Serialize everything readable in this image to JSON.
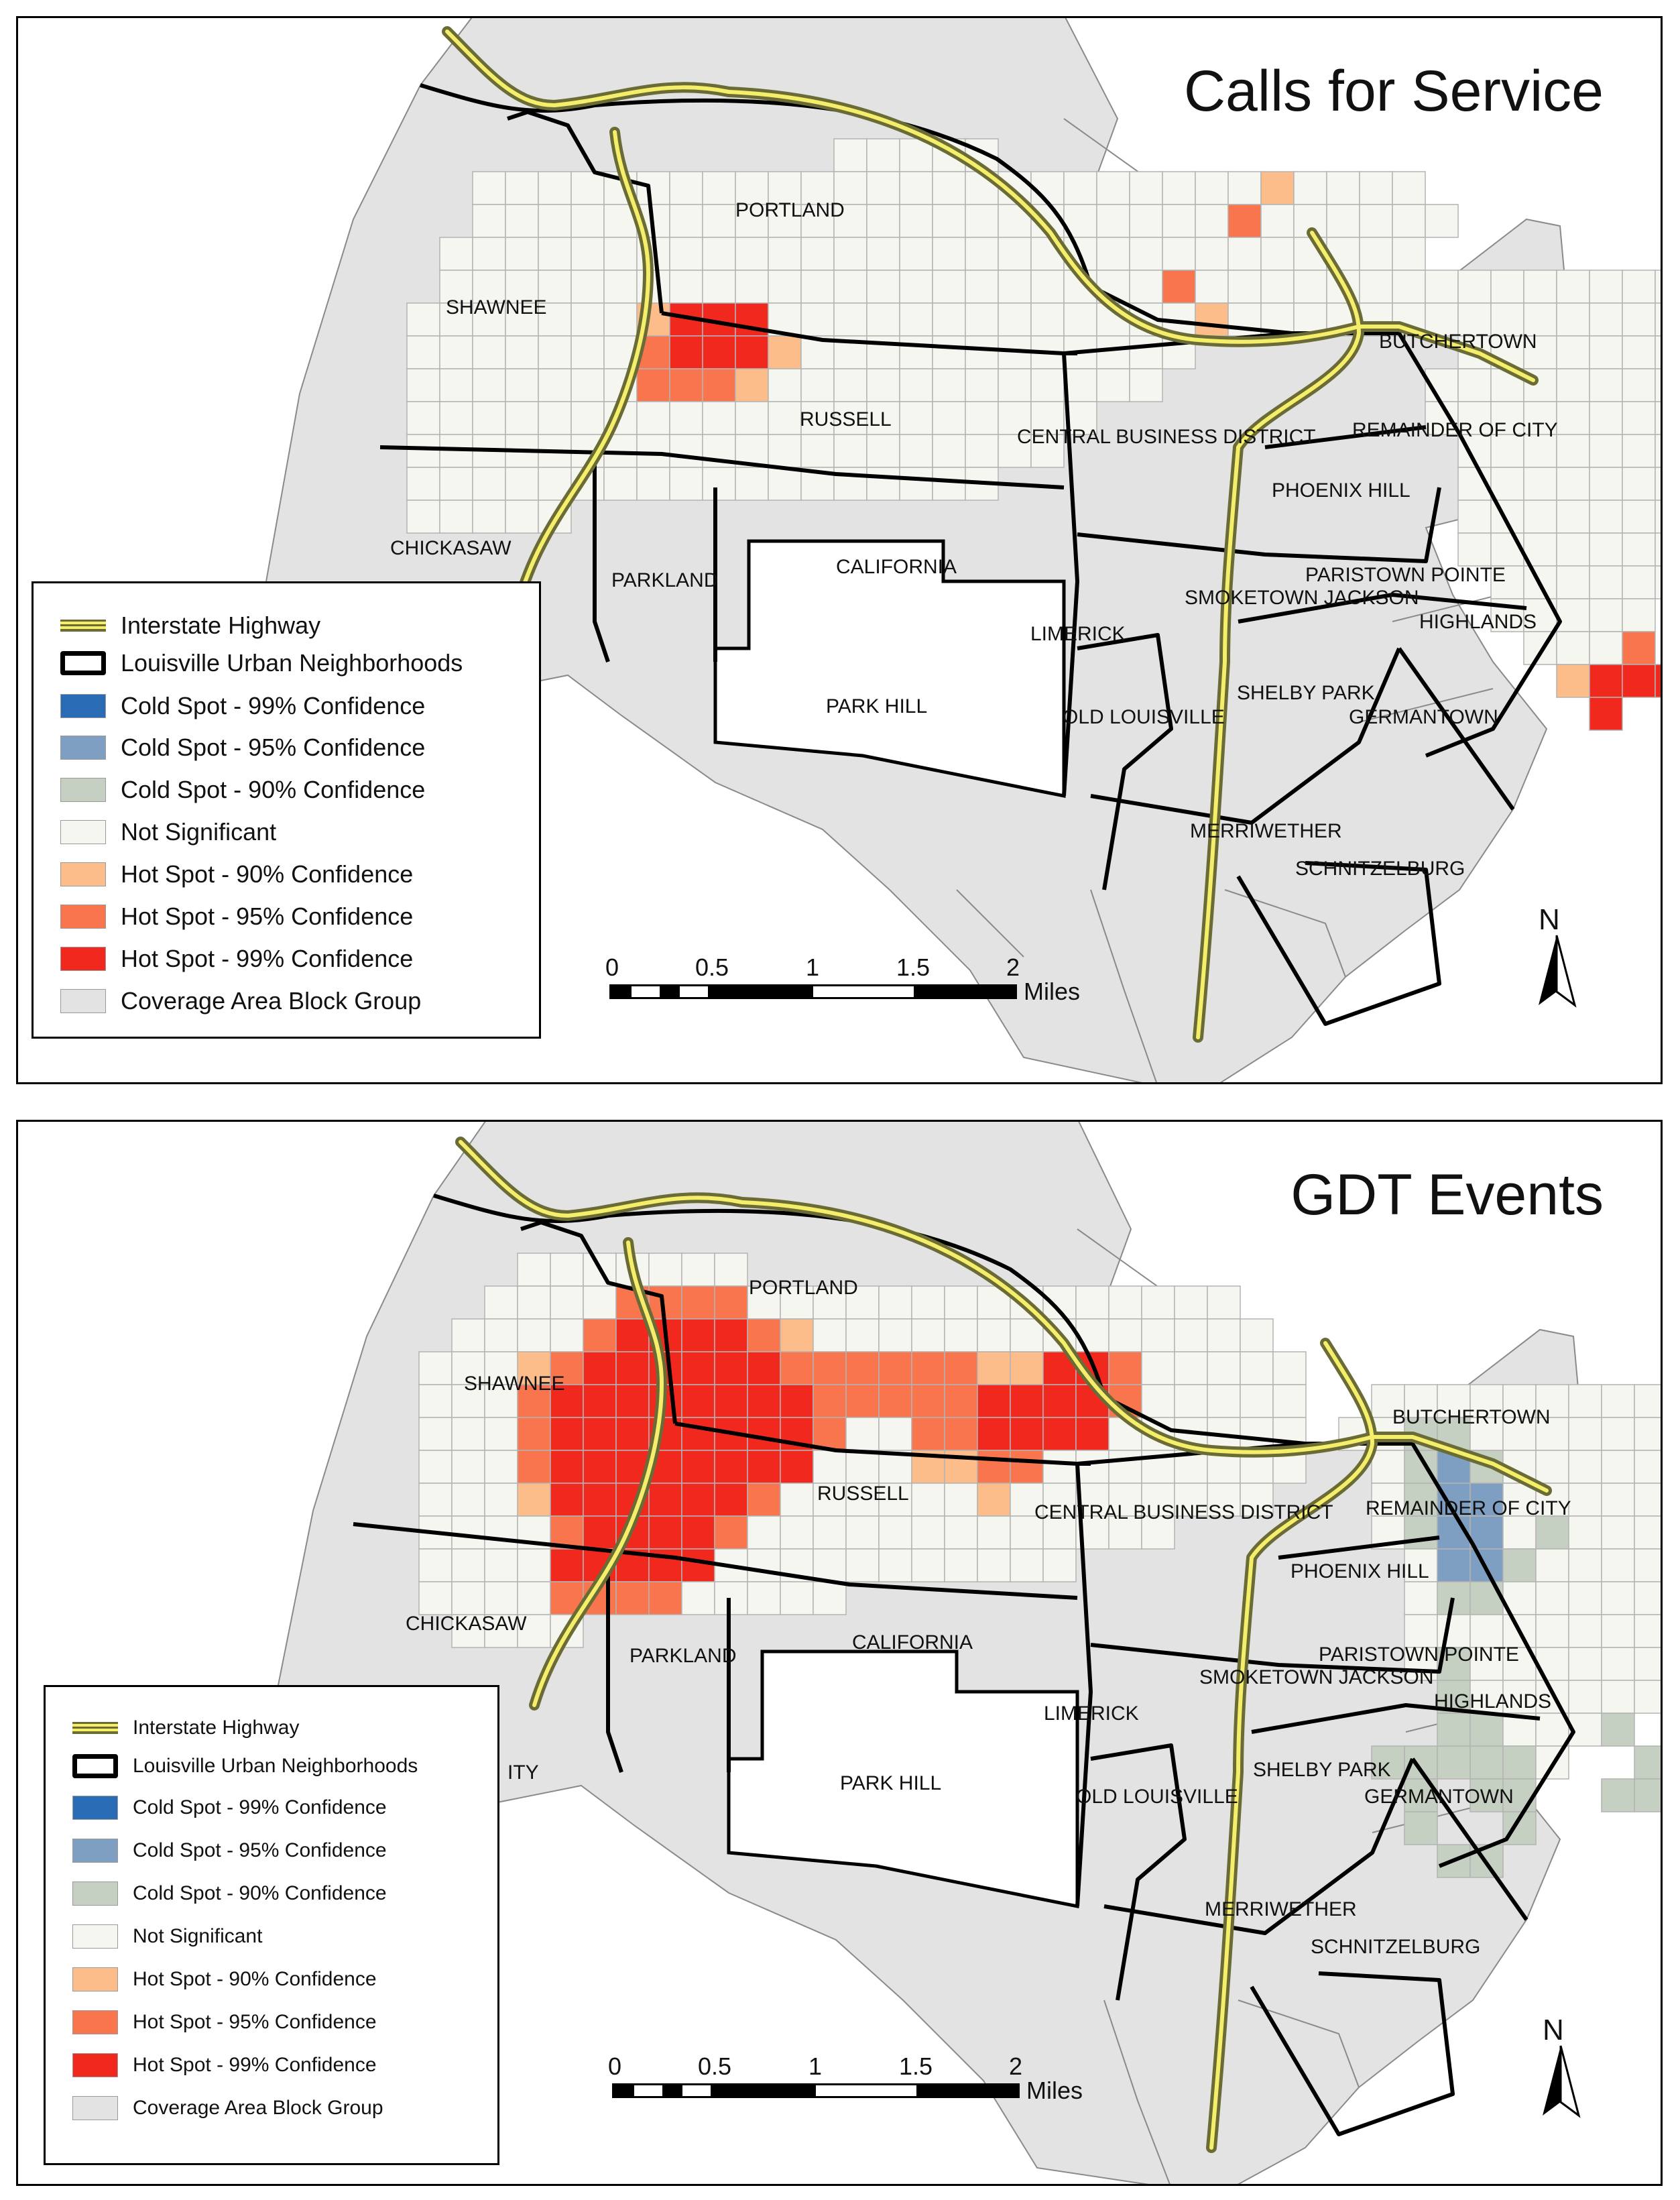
{
  "colors": {
    "cold99": "#2a6bb5",
    "cold95": "#7f9fc2",
    "cold90": "#c6d0c2",
    "not_sig": "#f6f6f1",
    "hot90": "#fdbd8a",
    "hot95": "#f8754d",
    "hot99": "#f0281e",
    "coverage": "#e3e3e3",
    "grid_line": "#b3b3b3",
    "highway": "#f4ee6a"
  },
  "panels": [
    {
      "title": "Calls for Service",
      "neighborhoods": [
        "PORTLAND",
        "SHAWNEE",
        "RUSSELL",
        "CENTRAL BUSINESS DISTRICT",
        "BUTCHERTOWN",
        "REMAINDER OF CITY",
        "PHOENIX HILL",
        "CHICKASAW",
        "PARKLAND",
        "CALIFORNIA",
        "PARISTOWN POINTE",
        "SMOKETOWN JACKSON",
        "HIGHLANDS",
        "LIMERICK",
        "SHELBY PARK",
        "PARK HILL",
        "OLD LOUISVILLE",
        "GERMANTOWN",
        "MERRIWETHER",
        "SCHNITZELBURG"
      ],
      "legend": [
        {
          "label": "Interstate Highway",
          "icon": "highway-symbol"
        },
        {
          "label": "Louisville Urban Neighborhoods",
          "icon": "neighborhood-outline"
        },
        {
          "label": "Cold Spot - 99% Confidence",
          "color_key": "cold99"
        },
        {
          "label": "Cold Spot - 95% Confidence",
          "color_key": "cold95"
        },
        {
          "label": "Cold Spot - 90% Confidence",
          "color_key": "cold90"
        },
        {
          "label": "Not Significant",
          "color_key": "not_sig"
        },
        {
          "label": "Hot Spot - 90% Confidence",
          "color_key": "hot90"
        },
        {
          "label": "Hot Spot - 95% Confidence",
          "color_key": "hot95"
        },
        {
          "label": "Hot Spot - 99% Confidence",
          "color_key": "hot99"
        },
        {
          "label": "Coverage Area Block Group",
          "color_key": "coverage"
        }
      ],
      "scale": {
        "ticks": [
          "0",
          "0.5",
          "1",
          "1.5",
          "2"
        ],
        "unit": "Miles"
      },
      "north": "N",
      "cells": [
        {
          "col": 7,
          "row": 5,
          "level": "hot90"
        },
        {
          "col": 8,
          "row": 5,
          "level": "hot99"
        },
        {
          "col": 9,
          "row": 5,
          "level": "hot99"
        },
        {
          "col": 10,
          "row": 5,
          "level": "hot99"
        },
        {
          "col": 7,
          "row": 6,
          "level": "hot95"
        },
        {
          "col": 8,
          "row": 6,
          "level": "hot99"
        },
        {
          "col": 9,
          "row": 6,
          "level": "hot99"
        },
        {
          "col": 10,
          "row": 6,
          "level": "hot99"
        },
        {
          "col": 11,
          "row": 6,
          "level": "hot90"
        },
        {
          "col": 7,
          "row": 7,
          "level": "hot95"
        },
        {
          "col": 8,
          "row": 7,
          "level": "hot95"
        },
        {
          "col": 9,
          "row": 7,
          "level": "hot95"
        },
        {
          "col": 10,
          "row": 7,
          "level": "hot90"
        },
        {
          "col": 26,
          "row": 1,
          "level": "hot90"
        },
        {
          "col": 25,
          "row": 2,
          "level": "hot95"
        },
        {
          "col": 23,
          "row": 4,
          "level": "hot95"
        },
        {
          "col": 24,
          "row": 5,
          "level": "hot90"
        },
        {
          "col": 37,
          "row": 15,
          "level": "hot95"
        },
        {
          "col": 35,
          "row": 16,
          "level": "hot90"
        },
        {
          "col": 36,
          "row": 16,
          "level": "hot99"
        },
        {
          "col": 37,
          "row": 16,
          "level": "hot99"
        },
        {
          "col": 38,
          "row": 16,
          "level": "hot99"
        },
        {
          "col": 36,
          "row": 17,
          "level": "hot99"
        }
      ]
    },
    {
      "title": "GDT Events",
      "neighborhoods": [
        "PORTLAND",
        "SHAWNEE",
        "RUSSELL",
        "CENTRAL BUSINESS DISTRICT",
        "BUTCHERTOWN",
        "REMAINDER OF CITY",
        "PHOENIX HILL",
        "CHICKASAW",
        "PARKLAND",
        "CALIFORNIA",
        "PARISTOWN POINTE",
        "SMOKETOWN JACKSON",
        "HIGHLANDS",
        "LIMERICK",
        "SHELBY PARK",
        "PARK HILL",
        "OLD LOUISVILLE",
        "GERMANTOWN",
        "MERRIWETHER",
        "SCHNITZELBURG",
        "ITY"
      ],
      "legend": [
        {
          "label": "Interstate Highway",
          "icon": "highway-symbol"
        },
        {
          "label": "Louisville Urban Neighborhoods",
          "icon": "neighborhood-outline"
        },
        {
          "label": "Cold Spot - 99% Confidence",
          "color_key": "cold99"
        },
        {
          "label": "Cold Spot - 95% Confidence",
          "color_key": "cold95"
        },
        {
          "label": "Cold Spot - 90% Confidence",
          "color_key": "cold90"
        },
        {
          "label": "Not Significant",
          "color_key": "not_sig"
        },
        {
          "label": "Hot Spot - 90% Confidence",
          "color_key": "hot90"
        },
        {
          "label": "Hot Spot - 95% Confidence",
          "color_key": "hot95"
        },
        {
          "label": "Hot Spot - 99% Confidence",
          "color_key": "hot99"
        },
        {
          "label": "Coverage Area Block Group",
          "color_key": "coverage"
        }
      ],
      "scale": {
        "ticks": [
          "0",
          "0.5",
          "1",
          "1.5",
          "2"
        ],
        "unit": "Miles"
      },
      "north": "N",
      "cells": [
        {
          "col": 8,
          "row": 1,
          "level": "hot95"
        },
        {
          "col": 9,
          "row": 1,
          "level": "hot95"
        },
        {
          "col": 10,
          "row": 1,
          "level": "hot95"
        },
        {
          "col": 11,
          "row": 1,
          "level": "hot95"
        },
        {
          "col": 7,
          "row": 2,
          "level": "hot95"
        },
        {
          "col": 8,
          "row": 2,
          "level": "hot99"
        },
        {
          "col": 9,
          "row": 2,
          "level": "hot99"
        },
        {
          "col": 10,
          "row": 2,
          "level": "hot99"
        },
        {
          "col": 11,
          "row": 2,
          "level": "hot99"
        },
        {
          "col": 12,
          "row": 2,
          "level": "hot95"
        },
        {
          "col": 13,
          "row": 2,
          "level": "hot90"
        },
        {
          "col": 5,
          "row": 3,
          "level": "hot90"
        },
        {
          "col": 6,
          "row": 3,
          "level": "hot95"
        },
        {
          "col": 7,
          "row": 3,
          "level": "hot99"
        },
        {
          "col": 8,
          "row": 3,
          "level": "hot99"
        },
        {
          "col": 9,
          "row": 3,
          "level": "hot99"
        },
        {
          "col": 10,
          "row": 3,
          "level": "hot99"
        },
        {
          "col": 11,
          "row": 3,
          "level": "hot99"
        },
        {
          "col": 12,
          "row": 3,
          "level": "hot99"
        },
        {
          "col": 13,
          "row": 3,
          "level": "hot95"
        },
        {
          "col": 14,
          "row": 3,
          "level": "hot95"
        },
        {
          "col": 15,
          "row": 3,
          "level": "hot95"
        },
        {
          "col": 16,
          "row": 3,
          "level": "hot95"
        },
        {
          "col": 17,
          "row": 3,
          "level": "hot95"
        },
        {
          "col": 18,
          "row": 3,
          "level": "hot95"
        },
        {
          "col": 19,
          "row": 3,
          "level": "hot90"
        },
        {
          "col": 20,
          "row": 3,
          "level": "hot90"
        },
        {
          "col": 21,
          "row": 3,
          "level": "hot99"
        },
        {
          "col": 22,
          "row": 3,
          "level": "hot99"
        },
        {
          "col": 23,
          "row": 3,
          "level": "hot95"
        },
        {
          "col": 5,
          "row": 4,
          "level": "hot95"
        },
        {
          "col": 6,
          "row": 4,
          "level": "hot99"
        },
        {
          "col": 7,
          "row": 4,
          "level": "hot99"
        },
        {
          "col": 8,
          "row": 4,
          "level": "hot99"
        },
        {
          "col": 9,
          "row": 4,
          "level": "hot99"
        },
        {
          "col": 10,
          "row": 4,
          "level": "hot99"
        },
        {
          "col": 11,
          "row": 4,
          "level": "hot99"
        },
        {
          "col": 12,
          "row": 4,
          "level": "hot99"
        },
        {
          "col": 13,
          "row": 4,
          "level": "hot99"
        },
        {
          "col": 14,
          "row": 4,
          "level": "hot95"
        },
        {
          "col": 15,
          "row": 4,
          "level": "hot95"
        },
        {
          "col": 16,
          "row": 4,
          "level": "hot95"
        },
        {
          "col": 17,
          "row": 4,
          "level": "hot95"
        },
        {
          "col": 18,
          "row": 4,
          "level": "hot95"
        },
        {
          "col": 19,
          "row": 4,
          "level": "hot99"
        },
        {
          "col": 20,
          "row": 4,
          "level": "hot99"
        },
        {
          "col": 21,
          "row": 4,
          "level": "hot99"
        },
        {
          "col": 22,
          "row": 4,
          "level": "hot99"
        },
        {
          "col": 23,
          "row": 4,
          "level": "hot95"
        },
        {
          "col": 5,
          "row": 5,
          "level": "hot95"
        },
        {
          "col": 6,
          "row": 5,
          "level": "hot99"
        },
        {
          "col": 7,
          "row": 5,
          "level": "hot99"
        },
        {
          "col": 8,
          "row": 5,
          "level": "hot99"
        },
        {
          "col": 9,
          "row": 5,
          "level": "hot99"
        },
        {
          "col": 10,
          "row": 5,
          "level": "hot99"
        },
        {
          "col": 11,
          "row": 5,
          "level": "hot99"
        },
        {
          "col": 12,
          "row": 5,
          "level": "hot99"
        },
        {
          "col": 13,
          "row": 5,
          "level": "hot99"
        },
        {
          "col": 14,
          "row": 5,
          "level": "hot95"
        },
        {
          "col": 17,
          "row": 5,
          "level": "hot95"
        },
        {
          "col": 18,
          "row": 5,
          "level": "hot95"
        },
        {
          "col": 19,
          "row": 5,
          "level": "hot99"
        },
        {
          "col": 20,
          "row": 5,
          "level": "hot99"
        },
        {
          "col": 21,
          "row": 5,
          "level": "hot99"
        },
        {
          "col": 22,
          "row": 5,
          "level": "hot99"
        },
        {
          "col": 5,
          "row": 6,
          "level": "hot95"
        },
        {
          "col": 6,
          "row": 6,
          "level": "hot99"
        },
        {
          "col": 7,
          "row": 6,
          "level": "hot99"
        },
        {
          "col": 8,
          "row": 6,
          "level": "hot99"
        },
        {
          "col": 9,
          "row": 6,
          "level": "hot99"
        },
        {
          "col": 10,
          "row": 6,
          "level": "hot99"
        },
        {
          "col": 11,
          "row": 6,
          "level": "hot99"
        },
        {
          "col": 12,
          "row": 6,
          "level": "hot99"
        },
        {
          "col": 13,
          "row": 6,
          "level": "hot99"
        },
        {
          "col": 17,
          "row": 6,
          "level": "hot90"
        },
        {
          "col": 18,
          "row": 6,
          "level": "hot90"
        },
        {
          "col": 19,
          "row": 6,
          "level": "hot95"
        },
        {
          "col": 20,
          "row": 6,
          "level": "hot95"
        },
        {
          "col": 5,
          "row": 7,
          "level": "hot90"
        },
        {
          "col": 6,
          "row": 7,
          "level": "hot99"
        },
        {
          "col": 7,
          "row": 7,
          "level": "hot99"
        },
        {
          "col": 8,
          "row": 7,
          "level": "hot99"
        },
        {
          "col": 9,
          "row": 7,
          "level": "hot99"
        },
        {
          "col": 10,
          "row": 7,
          "level": "hot99"
        },
        {
          "col": 11,
          "row": 7,
          "level": "hot99"
        },
        {
          "col": 12,
          "row": 7,
          "level": "hot95"
        },
        {
          "col": 19,
          "row": 7,
          "level": "hot90"
        },
        {
          "col": 6,
          "row": 8,
          "level": "hot95"
        },
        {
          "col": 7,
          "row": 8,
          "level": "hot99"
        },
        {
          "col": 8,
          "row": 8,
          "level": "hot99"
        },
        {
          "col": 9,
          "row": 8,
          "level": "hot99"
        },
        {
          "col": 10,
          "row": 8,
          "level": "hot99"
        },
        {
          "col": 11,
          "row": 8,
          "level": "hot95"
        },
        {
          "col": 6,
          "row": 9,
          "level": "hot99"
        },
        {
          "col": 7,
          "row": 9,
          "level": "hot99"
        },
        {
          "col": 8,
          "row": 9,
          "level": "hot99"
        },
        {
          "col": 9,
          "row": 9,
          "level": "hot99"
        },
        {
          "col": 10,
          "row": 9,
          "level": "hot99"
        },
        {
          "col": 6,
          "row": 10,
          "level": "hot95"
        },
        {
          "col": 7,
          "row": 10,
          "level": "hot95"
        },
        {
          "col": 8,
          "row": 10,
          "level": "hot95"
        },
        {
          "col": 9,
          "row": 10,
          "level": "hot95"
        },
        {
          "col": 32,
          "row": 5,
          "level": "cold90"
        },
        {
          "col": 33,
          "row": 5,
          "level": "cold90"
        },
        {
          "col": 32,
          "row": 6,
          "level": "cold90"
        },
        {
          "col": 33,
          "row": 6,
          "level": "cold95"
        },
        {
          "col": 34,
          "row": 6,
          "level": "cold90"
        },
        {
          "col": 32,
          "row": 7,
          "level": "cold90"
        },
        {
          "col": 33,
          "row": 7,
          "level": "cold95"
        },
        {
          "col": 34,
          "row": 7,
          "level": "cold95"
        },
        {
          "col": 32,
          "row": 8,
          "level": "cold90"
        },
        {
          "col": 33,
          "row": 8,
          "level": "cold95"
        },
        {
          "col": 34,
          "row": 8,
          "level": "cold95"
        },
        {
          "col": 36,
          "row": 8,
          "level": "cold90"
        },
        {
          "col": 33,
          "row": 9,
          "level": "cold95"
        },
        {
          "col": 34,
          "row": 9,
          "level": "cold95"
        },
        {
          "col": 35,
          "row": 9,
          "level": "cold90"
        },
        {
          "col": 33,
          "row": 10,
          "level": "cold90"
        },
        {
          "col": 34,
          "row": 10,
          "level": "cold90"
        },
        {
          "col": 33,
          "row": 12,
          "level": "cold90"
        },
        {
          "col": 33,
          "row": 13,
          "level": "cold90"
        },
        {
          "col": 33,
          "row": 14,
          "level": "cold90"
        },
        {
          "col": 34,
          "row": 14,
          "level": "cold90"
        },
        {
          "col": 38,
          "row": 14,
          "level": "cold90"
        },
        {
          "col": 31,
          "row": 15,
          "level": "cold90"
        },
        {
          "col": 32,
          "row": 15,
          "level": "cold90"
        },
        {
          "col": 33,
          "row": 15,
          "level": "cold90"
        },
        {
          "col": 34,
          "row": 15,
          "level": "cold90"
        },
        {
          "col": 35,
          "row": 15,
          "level": "cold90"
        },
        {
          "col": 39,
          "row": 15,
          "level": "cold90"
        },
        {
          "col": 40,
          "row": 15,
          "level": "cold90"
        },
        {
          "col": 32,
          "row": 16,
          "level": "cold90"
        },
        {
          "col": 34,
          "row": 16,
          "level": "cold90"
        },
        {
          "col": 35,
          "row": 16,
          "level": "cold90"
        },
        {
          "col": 38,
          "row": 16,
          "level": "cold90"
        },
        {
          "col": 39,
          "row": 16,
          "level": "cold90"
        },
        {
          "col": 32,
          "row": 17,
          "level": "cold90"
        },
        {
          "col": 35,
          "row": 17,
          "level": "cold90"
        },
        {
          "col": 33,
          "row": 18,
          "level": "cold90"
        },
        {
          "col": 34,
          "row": 18,
          "level": "cold90"
        }
      ]
    }
  ]
}
